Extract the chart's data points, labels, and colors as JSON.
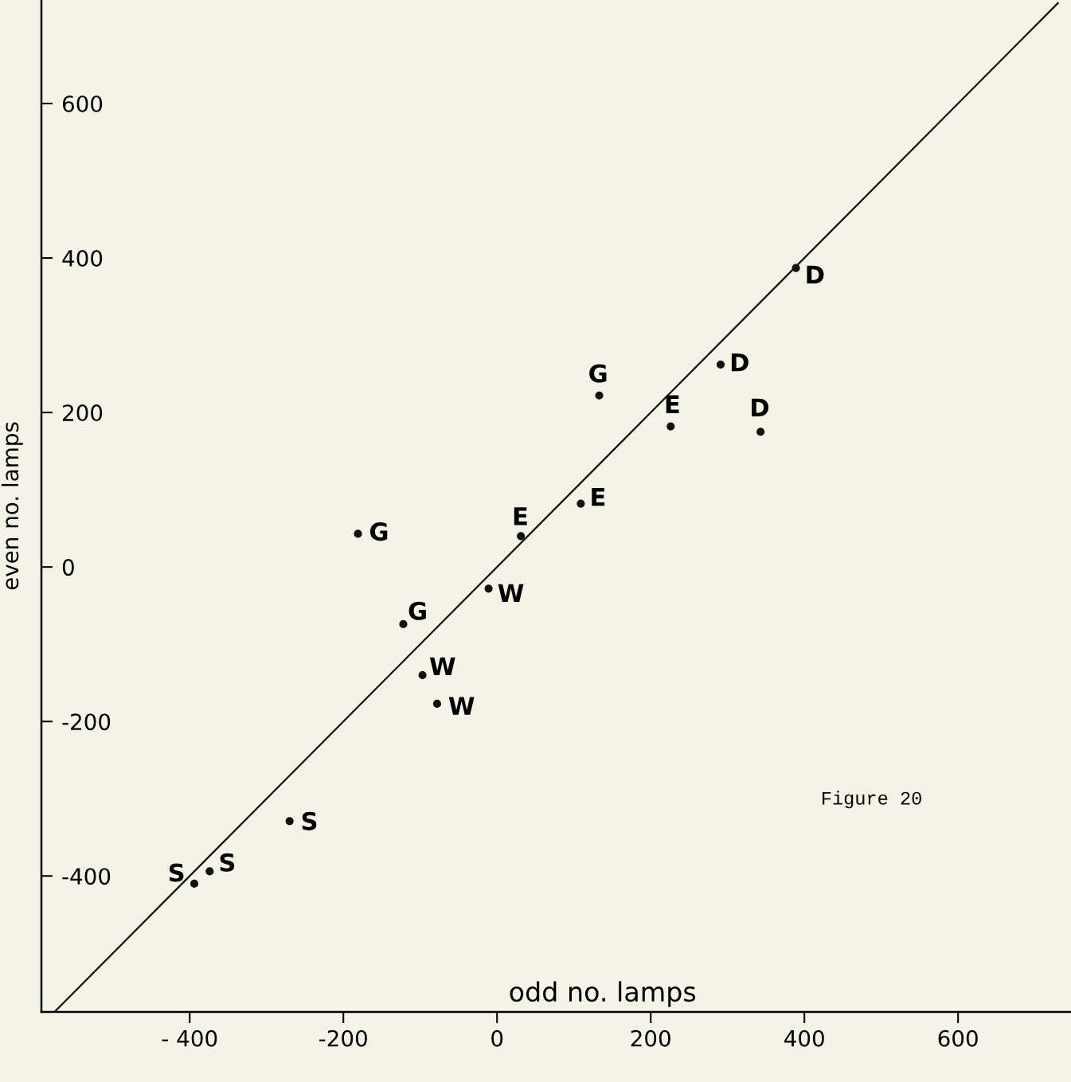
{
  "chart_data": {
    "type": "scatter",
    "xlabel": "odd no. lamps",
    "ylabel": "even no. lamps",
    "xlim": [
      -593,
      747
    ],
    "ylim": [
      -576,
      734
    ],
    "xticks": [
      {
        "value": -400,
        "label": "- 400"
      },
      -200,
      0,
      200,
      400,
      600
    ],
    "yticks": [
      -400,
      -200,
      0,
      200,
      400,
      600
    ],
    "grid": false,
    "marker": "circle",
    "series": [
      {
        "color": "#111111",
        "x": [
          389,
          291,
          343,
          226,
          109,
          31,
          133,
          -181,
          -122,
          -11,
          -97,
          -78,
          -270,
          -374,
          -394
        ],
        "values": [
          387,
          262,
          175,
          182,
          82,
          40,
          222,
          43,
          -74,
          -28,
          -140,
          -177,
          -329,
          -394,
          -410
        ]
      },
      {
        "type": "line",
        "color": "#111111",
        "line_style": "solid",
        "marker": "none",
        "x": [
          -576,
          730
        ],
        "values": [
          -576,
          730
        ]
      }
    ],
    "annotations": [
      {
        "text": "D",
        "x": 389,
        "y": 387
      },
      {
        "text": "D",
        "x": 291,
        "y": 262
      },
      {
        "text": "D",
        "x": 343,
        "y": 175
      },
      {
        "text": "E",
        "x": 226,
        "y": 182
      },
      {
        "text": "E",
        "x": 109,
        "y": 82
      },
      {
        "text": "E",
        "x": 31,
        "y": 40
      },
      {
        "text": "G",
        "x": 133,
        "y": 222
      },
      {
        "text": "G",
        "x": -181,
        "y": 43
      },
      {
        "text": "G",
        "x": -122,
        "y": -74
      },
      {
        "text": "W",
        "x": -11,
        "y": -28
      },
      {
        "text": "W",
        "x": -97,
        "y": -140
      },
      {
        "text": "W",
        "x": -78,
        "y": -177
      },
      {
        "text": "S",
        "x": -270,
        "y": -329
      },
      {
        "text": "S",
        "x": -374,
        "y": -394
      },
      {
        "text": "S",
        "x": -394,
        "y": -410
      },
      "Figure 20"
    ]
  }
}
